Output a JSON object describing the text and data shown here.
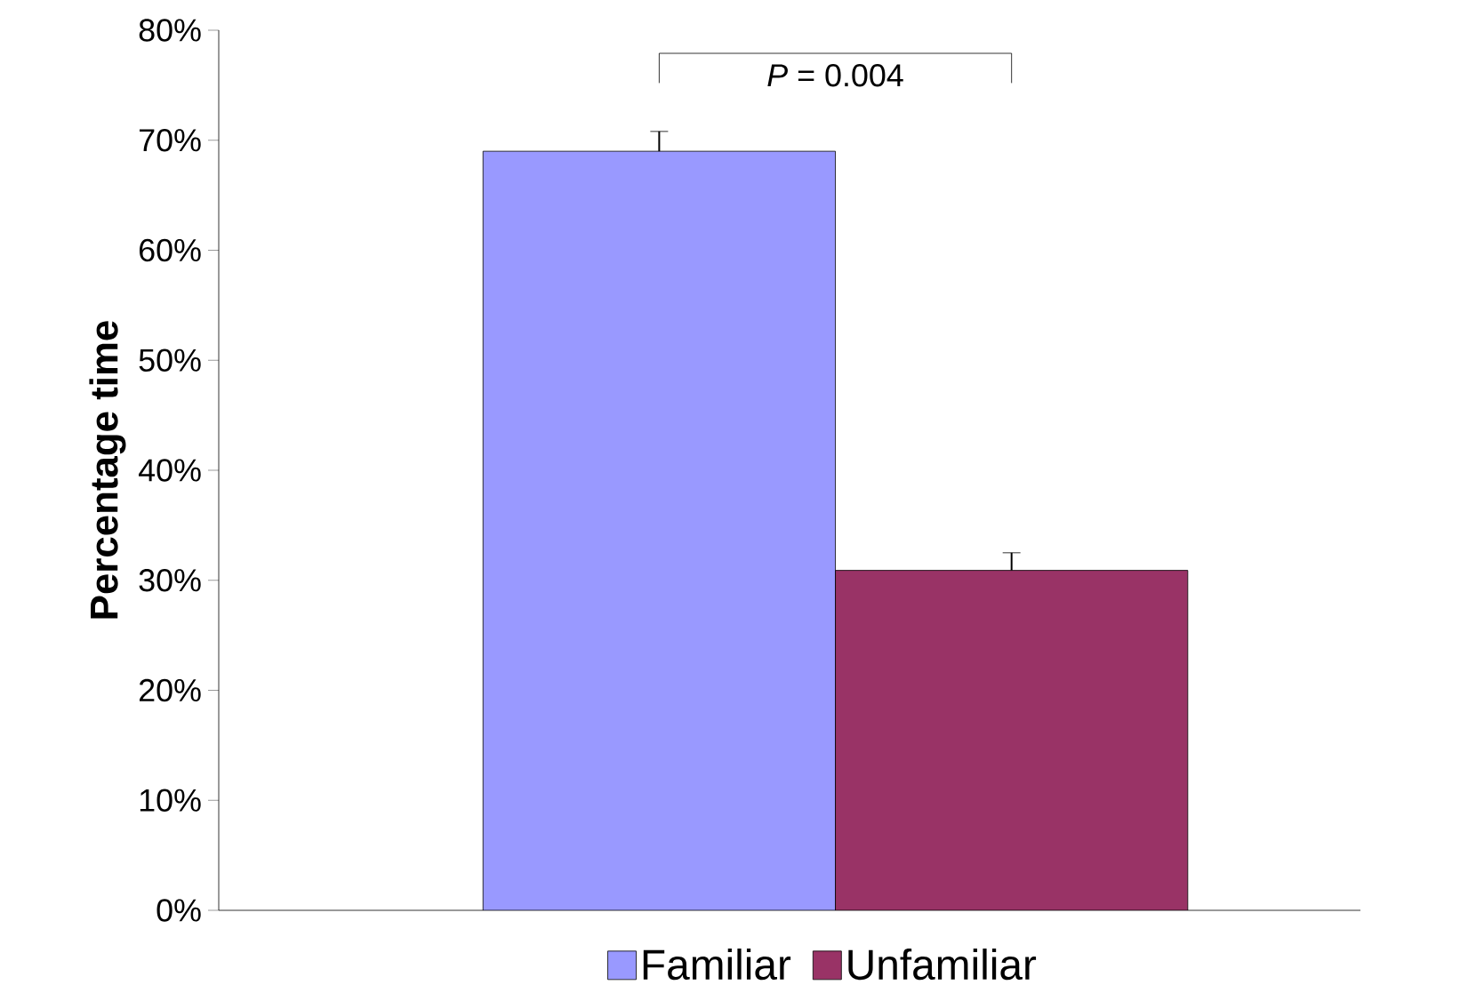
{
  "chart_data": {
    "type": "bar",
    "ylabel": "Percentage time",
    "categories": [
      null
    ],
    "series": [
      {
        "name": "Familiar",
        "color": "#9999ff",
        "values": [
          69
        ],
        "errors": [
          1.8
        ]
      },
      {
        "name": "Unfamiliar",
        "color": "#993366",
        "values": [
          30.9
        ],
        "errors": [
          1.6
        ]
      }
    ],
    "ylim": [
      0,
      80
    ],
    "yticks": [
      {
        "value": 0,
        "label": "0%"
      },
      {
        "value": 10,
        "label": "10%"
      },
      {
        "value": 20,
        "label": "20%"
      },
      {
        "value": 30,
        "label": "30%"
      },
      {
        "value": 40,
        "label": "40%"
      },
      {
        "value": 50,
        "label": "50%"
      },
      {
        "value": 60,
        "label": "60%"
      },
      {
        "value": 70,
        "label": "70%"
      },
      {
        "value": 80,
        "label": "80%"
      }
    ],
    "annotations": [
      "*P* = 0.004"
    ],
    "legend": "bottom"
  }
}
